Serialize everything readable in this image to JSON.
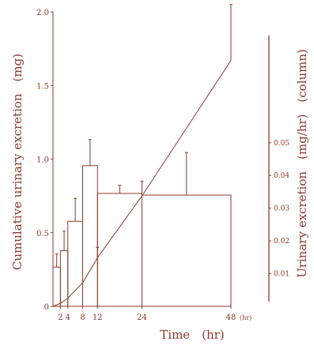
{
  "chart_data": {
    "type": "bar+line",
    "color": "#8b3a2a",
    "xlabel": "Time　(hr)",
    "ylabel_left": "Cumulative urinary excretion　(mg)",
    "ylabel_right": "Urinary excretion　(mg/hr)　(column)",
    "x_ticks": [
      "2",
      "4",
      "8",
      "12",
      "24",
      "48"
    ],
    "x_tick_values": [
      2,
      4,
      8,
      12,
      24,
      48
    ],
    "x_unit": "(hr)",
    "xlim": [
      0,
      48
    ],
    "left_ticks": [
      "0",
      "0.5",
      "1.0",
      "1.5",
      "2.0"
    ],
    "left_tick_values": [
      0,
      0.5,
      1.0,
      1.5,
      2.0
    ],
    "ylim_left": [
      0,
      2.0
    ],
    "right_ticks": [
      "0.01",
      "0.02",
      "0.03",
      "0.04",
      "0.05"
    ],
    "right_tick_values": [
      0.01,
      0.02,
      0.03,
      0.04,
      0.05
    ],
    "ylim_right": [
      0,
      0.09
    ],
    "columns": {
      "name": "Urinary excretion (mg/hr)",
      "intervals": [
        [
          0,
          2
        ],
        [
          2,
          4
        ],
        [
          4,
          8
        ],
        [
          8,
          12
        ],
        [
          12,
          24
        ],
        [
          24,
          48
        ]
      ],
      "values": [
        0.012,
        0.017,
        0.026,
        0.043,
        0.0345,
        0.034
      ],
      "errors": [
        0.004,
        0.006,
        0.007,
        0.008,
        0.0025,
        0.013
      ]
    },
    "cumulative": {
      "name": "Cumulative urinary excretion (mg)",
      "x": [
        0,
        2,
        4,
        8,
        12,
        24,
        48
      ],
      "y": [
        0,
        0.02,
        0.055,
        0.16,
        0.33,
        0.75,
        1.67
      ],
      "errors": [
        0,
        0,
        0,
        0,
        0.07,
        0.1,
        0.38
      ]
    }
  }
}
